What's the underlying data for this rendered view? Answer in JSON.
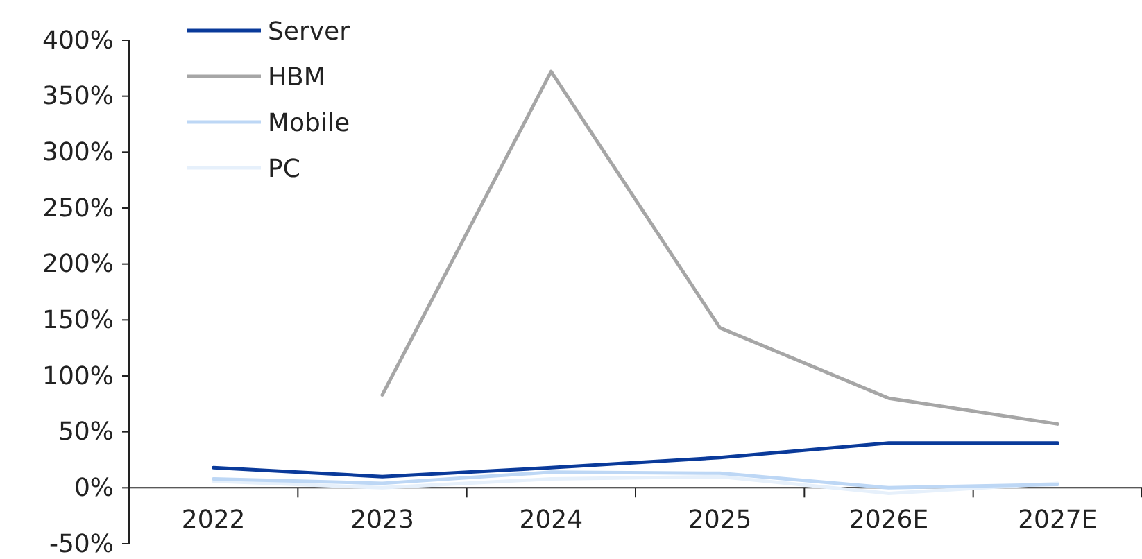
{
  "chart_data": {
    "type": "line",
    "categories": [
      "2022",
      "2023",
      "2024",
      "2025",
      "2026E",
      "2027E"
    ],
    "series": [
      {
        "name": "Server",
        "color": "#0a3a9a",
        "values": [
          18,
          10,
          18,
          27,
          40,
          40
        ]
      },
      {
        "name": "HBM",
        "color": "#a6a6a6",
        "values": [
          null,
          83,
          372,
          143,
          80,
          57
        ]
      },
      {
        "name": "Mobile",
        "color": "#bdd7f5",
        "values": [
          8,
          4,
          14,
          13,
          0,
          3
        ]
      },
      {
        "name": "PC",
        "color": "#e6f0fb",
        "values": [
          6,
          0,
          8,
          10,
          -5,
          4
        ]
      }
    ],
    "ylim": [
      -50,
      400
    ],
    "yticks": [
      {
        "value": -50,
        "label": "-50%"
      },
      {
        "value": 0,
        "label": "0%"
      },
      {
        "value": 50,
        "label": "50%"
      },
      {
        "value": 100,
        "label": "100%"
      },
      {
        "value": 150,
        "label": "150%"
      },
      {
        "value": 200,
        "label": "200%"
      },
      {
        "value": 250,
        "label": "250%"
      },
      {
        "value": 300,
        "label": "300%"
      },
      {
        "value": 350,
        "label": "350%"
      },
      {
        "value": 400,
        "label": "400%"
      }
    ],
    "legend": "top left",
    "grid": false
  }
}
